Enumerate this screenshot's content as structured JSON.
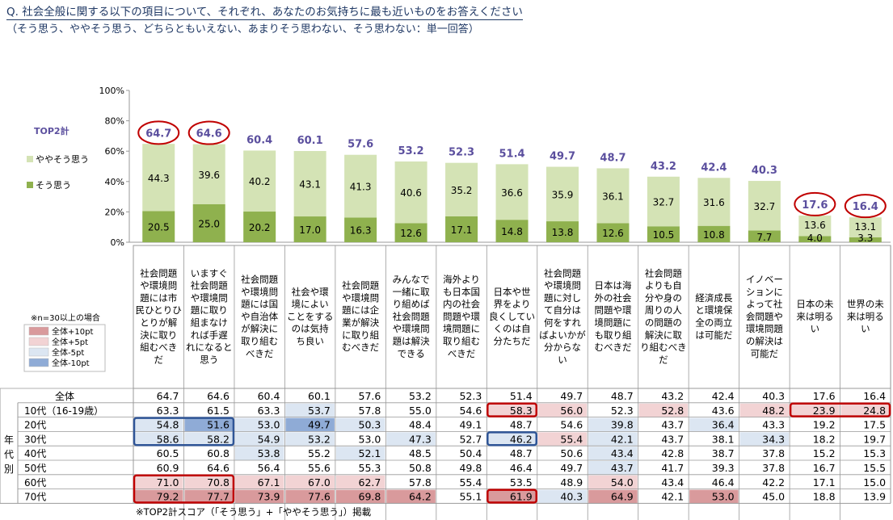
{
  "header": {
    "title": "Q. 社会全般に関する以下の項目について、それぞれ、あなたのお気持ちに最も近いものをお答えください",
    "subtitle": "（そう思う、ややそう思う、どちらともいえない、あまりそう思わない、そう思わない：単一回答）"
  },
  "legend": {
    "top2_label": "TOP2計",
    "somewhat_label": "ややそう思う",
    "agree_label": "そう思う"
  },
  "colors": {
    "agree": "#8fb14e",
    "somewhat": "#d4e3b5",
    "top2_text": "#5b4f9e",
    "highlight_circle": "#c00000",
    "plus10": "#d99a9c",
    "plus5": "#f2d3d4",
    "minus5": "#dce6f2",
    "minus10": "#8fabd6",
    "box_red": "#c00000",
    "box_blue": "#2f5597"
  },
  "chart_data": {
    "type": "bar",
    "stacked": true,
    "ylim": [
      0,
      100
    ],
    "yticks": [
      "0%",
      "20%",
      "40%",
      "60%",
      "80%",
      "100%"
    ],
    "ytick_values": [
      0,
      20,
      40,
      60,
      80,
      100
    ],
    "categories": [
      "社会問題や環境問題には市民ひとりひとりが解決に取り組むべきだ",
      "いますぐ社会問題や環境問題に取り組まなければ手遅れになると思う",
      "社会問題や環境問題には国や自治体が解決に取り組むべきだ",
      "社会や環境によいことをするのは気持ち良い",
      "社会問題や環境問題には企業が解決に取り組むべきだ",
      "みんなで一緒に取り組めば社会問題や環境問題は解決できる",
      "海外よりも日本国内の社会問題や環境問題に取り組むべきだ",
      "日本や世界をより良くしていくのは自分たちだ",
      "社会問題や環境問題に対して自分は何をすればよいかが分からない",
      "日本は海外の社会問題や環境問題にも取り組むべきだ",
      "社会問題よりも自分や身の周りの人の問題の解決に取り組むべきだ",
      "経済成長と環境保全の両立は可能だ",
      "イノベーションによって社会問題や環境問題の解決は可能だ",
      "日本の未来は明るい",
      "世界の未来は明るい"
    ],
    "category_lines": [
      [
        "社会問題",
        "や環境問",
        "題には市",
        "民ひとりひ",
        "とりが解",
        "決に取り",
        "組むべき",
        "だ"
      ],
      [
        "いますぐ",
        "社会問題",
        "や環境問",
        "題に取り",
        "組まなけ",
        "れば手遅",
        "れになると",
        "思う"
      ],
      [
        "社会問題",
        "や環境問",
        "題には国",
        "や自治体",
        "が解決に",
        "取り組む",
        "べきだ"
      ],
      [
        "社会や環",
        "境によい",
        "ことをする",
        "のは気持",
        "ち良い"
      ],
      [
        "社会問題",
        "や環境問",
        "題には企",
        "業が解決",
        "に取り組",
        "むべきだ"
      ],
      [
        "みんなで",
        "一緒に取",
        "り組めば",
        "社会問題",
        "や環境問",
        "題は解決",
        "できる"
      ],
      [
        "海外より",
        "も日本国",
        "内の社会",
        "問題や環",
        "境問題に",
        "取り組む",
        "べきだ"
      ],
      [
        "日本や世",
        "界をより",
        "良くしてい",
        "くのは自",
        "分たちだ"
      ],
      [
        "社会問題",
        "や環境問",
        "題に対し",
        "て自分は",
        "何をすれ",
        "ばよいかが",
        "分からな",
        "い"
      ],
      [
        "日本は海",
        "外の社会",
        "問題や環",
        "境問題に",
        "も取り組",
        "むべきだ"
      ],
      [
        "社会問題",
        "よりも自",
        "分や身の",
        "周りの人",
        "の問題の",
        "解決に取",
        "り組むべき",
        "だ"
      ],
      [
        "経済成長",
        "と環境保",
        "全の両立",
        "は可能だ"
      ],
      [
        "イノベー",
        "ションに",
        "よって社",
        "会問題や",
        "環境問題",
        "の解決は",
        "可能だ"
      ],
      [
        "日本の未",
        "来は明る",
        "い"
      ],
      [
        "世界の未",
        "来は明る",
        "い"
      ]
    ],
    "series": [
      {
        "name": "そう思う",
        "values": [
          20.5,
          25.0,
          20.2,
          17.0,
          16.3,
          12.6,
          17.1,
          14.8,
          13.8,
          12.6,
          10.5,
          10.8,
          7.7,
          4.0,
          3.3
        ]
      },
      {
        "name": "ややそう思う",
        "values": [
          44.3,
          39.6,
          40.2,
          43.1,
          41.3,
          40.6,
          35.2,
          36.6,
          35.9,
          36.1,
          32.7,
          31.6,
          32.7,
          13.6,
          13.1
        ]
      }
    ],
    "top2": [
      64.7,
      64.6,
      60.4,
      60.1,
      57.6,
      53.2,
      52.3,
      51.4,
      49.7,
      48.7,
      43.2,
      42.4,
      40.3,
      17.6,
      16.4
    ],
    "circled": [
      0,
      1,
      13,
      14
    ]
  },
  "table": {
    "side_label": [
      "年",
      "代",
      "別"
    ],
    "rows": [
      {
        "label": "全体",
        "values": [
          64.7,
          64.6,
          60.4,
          60.1,
          57.6,
          53.2,
          52.3,
          51.4,
          49.7,
          48.7,
          43.2,
          42.4,
          40.3,
          17.6,
          16.4
        ],
        "shades": [
          "",
          "",
          "",
          "",
          "",
          "",
          "",
          "",
          "",
          "",
          "",
          "",
          "",
          "",
          ""
        ]
      },
      {
        "label": "10代（16-19歳）",
        "values": [
          63.3,
          61.5,
          63.3,
          53.7,
          57.8,
          55.0,
          54.6,
          58.3,
          56.0,
          52.3,
          52.8,
          43.6,
          48.2,
          23.9,
          24.8
        ],
        "shades": [
          "",
          "",
          "",
          "m5",
          "",
          "",
          "",
          "p5",
          "p5",
          "",
          "p5",
          "",
          "p5",
          "p5",
          "p5"
        ]
      },
      {
        "label": "20代",
        "values": [
          54.8,
          51.6,
          53.0,
          49.7,
          50.3,
          48.4,
          49.1,
          48.7,
          54.6,
          39.8,
          43.7,
          36.4,
          43.3,
          19.2,
          17.5
        ],
        "shades": [
          "m5",
          "m10",
          "m5",
          "m10",
          "m5",
          "",
          "",
          "",
          "",
          "m5",
          "",
          "m5",
          "",
          "",
          ""
        ]
      },
      {
        "label": "30代",
        "values": [
          58.6,
          58.2,
          54.9,
          53.2,
          53.0,
          47.3,
          52.7,
          46.2,
          55.4,
          42.1,
          43.7,
          38.1,
          34.3,
          18.2,
          19.7
        ],
        "shades": [
          "m5",
          "m5",
          "m5",
          "m5",
          "",
          "m5",
          "",
          "m5",
          "p5",
          "m5",
          "",
          "",
          "m5",
          "",
          ""
        ]
      },
      {
        "label": "40代",
        "values": [
          60.5,
          60.8,
          53.8,
          55.2,
          52.1,
          48.5,
          50.4,
          48.7,
          50.6,
          43.4,
          42.8,
          38.7,
          37.8,
          15.2,
          15.3
        ],
        "shades": [
          "",
          "",
          "m5",
          "",
          "m5",
          "",
          "",
          "",
          "",
          "m5",
          "",
          "",
          "",
          "",
          ""
        ]
      },
      {
        "label": "50代",
        "values": [
          60.9,
          64.6,
          56.4,
          55.6,
          55.3,
          50.8,
          49.8,
          46.4,
          49.7,
          43.7,
          41.7,
          39.3,
          37.8,
          16.7,
          15.5
        ],
        "shades": [
          "",
          "",
          "",
          "",
          "",
          "",
          "",
          "",
          "",
          "m5",
          "",
          "",
          "",
          "",
          ""
        ]
      },
      {
        "label": "60代",
        "values": [
          71.0,
          70.8,
          67.1,
          67.0,
          62.7,
          57.8,
          55.4,
          53.5,
          48.9,
          54.0,
          43.4,
          46.4,
          42.2,
          17.1,
          15.0
        ],
        "shades": [
          "p5",
          "p5",
          "p5",
          "p5",
          "p5",
          "",
          "",
          "",
          "",
          "p5",
          "",
          "",
          "",
          "",
          ""
        ]
      },
      {
        "label": "70代",
        "values": [
          79.2,
          77.7,
          73.9,
          77.6,
          69.8,
          64.2,
          55.1,
          61.9,
          40.3,
          64.9,
          42.1,
          53.0,
          45.0,
          18.8,
          13.9
        ],
        "shades": [
          "p10",
          "p10",
          "p10",
          "p10",
          "p10",
          "p10",
          "",
          "p10",
          "m5",
          "p10",
          "",
          "p10",
          "",
          "",
          ""
        ]
      }
    ],
    "boxes": [
      {
        "color": "red",
        "row_start": 1,
        "row_end": 1,
        "col_start": 7,
        "col_end": 7
      },
      {
        "color": "red",
        "row_start": 1,
        "row_end": 1,
        "col_start": 13,
        "col_end": 14
      },
      {
        "color": "blue",
        "row_start": 2,
        "row_end": 3,
        "col_start": 0,
        "col_end": 1
      },
      {
        "color": "blue",
        "row_start": 3,
        "row_end": 3,
        "col_start": 7,
        "col_end": 7
      },
      {
        "color": "red",
        "row_start": 6,
        "row_end": 7,
        "col_start": 0,
        "col_end": 1
      },
      {
        "color": "red",
        "row_start": 7,
        "row_end": 7,
        "col_start": 7,
        "col_end": 7
      }
    ]
  },
  "shade_legend": {
    "note": "※n=30以上の場合",
    "items": [
      {
        "key": "p10",
        "label": "全体+10pt"
      },
      {
        "key": "p5",
        "label": "全体+5pt"
      },
      {
        "key": "m5",
        "label": "全体-5pt"
      },
      {
        "key": "m10",
        "label": "全体-10pt"
      }
    ]
  },
  "footnote": "※TOP2計スコア（「そう思う」+「ややそう思う」）掲載"
}
